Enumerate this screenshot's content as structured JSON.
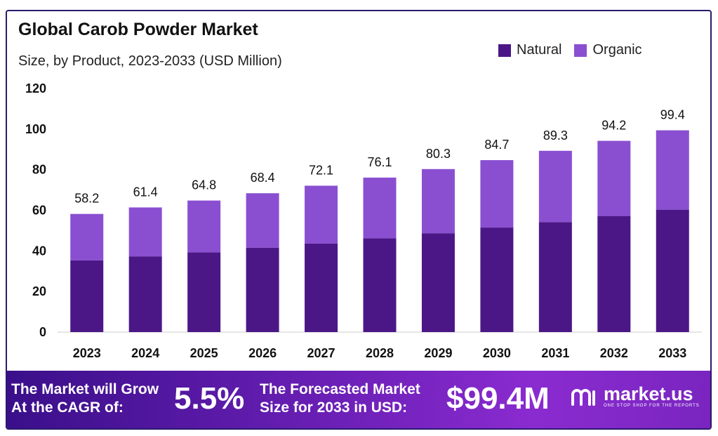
{
  "chart_data": {
    "type": "bar",
    "stacked": true,
    "title": "Global Carob Powder Market",
    "subtitle": "Size, by Product, 2023-2033 (USD Million)",
    "categories": [
      "2023",
      "2024",
      "2025",
      "2026",
      "2027",
      "2028",
      "2029",
      "2030",
      "2031",
      "2032",
      "2033"
    ],
    "series": [
      {
        "name": "Natural",
        "color": "#4b1787",
        "values": [
          35.3,
          37.3,
          39.3,
          41.6,
          43.6,
          46.2,
          48.7,
          51.5,
          54.2,
          57.2,
          60.3
        ]
      },
      {
        "name": "Organic",
        "color": "#8a4fd1",
        "values": [
          22.9,
          24.1,
          25.5,
          26.8,
          28.5,
          29.9,
          31.6,
          33.2,
          35.1,
          37.0,
          39.1
        ]
      }
    ],
    "totals": [
      "58.2",
      "61.4",
      "64.8",
      "68.4",
      "72.1",
      "76.1",
      "80.3",
      "84.7",
      "89.3",
      "94.2",
      "99.4"
    ],
    "ylim": [
      0,
      120
    ],
    "yticks": [
      "0",
      "20",
      "40",
      "60",
      "80",
      "100",
      "120"
    ],
    "legend_position": "top-right",
    "grid": false
  },
  "footer": {
    "cagr_text_line1": "The Market will Grow",
    "cagr_text_line2": "At the CAGR of:",
    "cagr_value": "5.5%",
    "forecast_text_line1": "The Forecasted Market",
    "forecast_text_line2": "Size for 2033 in USD:",
    "forecast_value": "$99.4M",
    "brand_name": "market.us",
    "brand_tagline": "ONE STOP SHOP FOR THE REPORTS",
    "brand_icon": "market-us-logo-icon"
  }
}
